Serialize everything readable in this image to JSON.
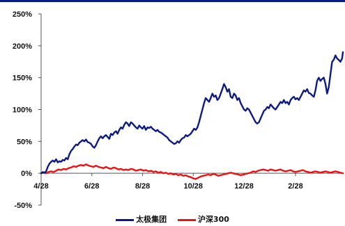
{
  "chart_data": {
    "type": "line",
    "title": "",
    "xlabel": "",
    "ylabel": "",
    "ylim": [
      -50,
      250
    ],
    "y_ticks": [
      -50,
      0,
      50,
      100,
      150,
      200,
      250
    ],
    "y_tick_labels": [
      "-50%",
      "0%",
      "50%",
      "100%",
      "150%",
      "200%",
      "250%"
    ],
    "x_tick_labels": [
      "4/28",
      "6/28",
      "8/28",
      "10/28",
      "12/28",
      "2/28"
    ],
    "x_domain": [
      0,
      363
    ],
    "x_ticks": [
      0,
      61,
      122,
      183,
      244,
      306
    ],
    "legend_position": "bottom",
    "series": [
      {
        "name": "太极集团",
        "color": "#0b1a84",
        "x": [
          0,
          2,
          4,
          6,
          8,
          10,
          12,
          14,
          16,
          18,
          20,
          22,
          24,
          26,
          28,
          30,
          32,
          34,
          36,
          38,
          40,
          42,
          44,
          46,
          48,
          50,
          52,
          54,
          56,
          58,
          60,
          62,
          64,
          66,
          68,
          70,
          72,
          74,
          76,
          78,
          80,
          82,
          84,
          86,
          88,
          90,
          92,
          94,
          96,
          98,
          100,
          102,
          104,
          106,
          108,
          110,
          112,
          114,
          116,
          118,
          120,
          122,
          124,
          126,
          128,
          130,
          132,
          134,
          136,
          138,
          140,
          142,
          144,
          146,
          148,
          150,
          152,
          154,
          156,
          158,
          160,
          162,
          164,
          166,
          168,
          170,
          172,
          174,
          176,
          178,
          180,
          182,
          184,
          186,
          188,
          190,
          192,
          194,
          196,
          198,
          200,
          202,
          204,
          206,
          208,
          210,
          212,
          214,
          216,
          218,
          220,
          222,
          224,
          226,
          228,
          230,
          232,
          234,
          236,
          238,
          240,
          242,
          244,
          246,
          248,
          250,
          252,
          254,
          256,
          258,
          260,
          262,
          264,
          266,
          268,
          270,
          272,
          274,
          276,
          278,
          280,
          282,
          284,
          286,
          288,
          290,
          292,
          294,
          296,
          298,
          300,
          302,
          304,
          306,
          308,
          310,
          312,
          314,
          316,
          318,
          320,
          322,
          324,
          326,
          328,
          330,
          332,
          334,
          336,
          338,
          340,
          342,
          344,
          346,
          348,
          350,
          352,
          354,
          356,
          358,
          360,
          362,
          363
        ],
        "y": [
          0,
          2,
          1,
          3,
          10,
          15,
          18,
          20,
          18,
          22,
          17,
          19,
          18,
          21,
          20,
          24,
          22,
          30,
          35,
          38,
          42,
          45,
          44,
          48,
          50,
          52,
          50,
          53,
          49,
          48,
          46,
          42,
          40,
          44,
          50,
          55,
          58,
          55,
          58,
          60,
          57,
          54,
          62,
          60,
          64,
          66,
          62,
          68,
          72,
          70,
          76,
          80,
          78,
          74,
          80,
          78,
          75,
          72,
          70,
          75,
          72,
          70,
          74,
          68,
          72,
          71,
          73,
          70,
          68,
          66,
          68,
          65,
          64,
          62,
          60,
          58,
          56,
          52,
          50,
          48,
          46,
          47,
          50,
          48,
          52,
          55,
          56,
          60,
          58,
          60,
          62,
          66,
          70,
          68,
          72,
          80,
          90,
          100,
          110,
          118,
          115,
          112,
          118,
          125,
          120,
          122,
          115,
          118,
          125,
          132,
          140,
          135,
          128,
          132,
          120,
          118,
          125,
          122,
          115,
          118,
          110,
          105,
          100,
          98,
          102,
          100,
          95,
          90,
          85,
          80,
          78,
          80,
          86,
          92,
          98,
          100,
          104,
          102,
          108,
          105,
          102,
          100,
          104,
          108,
          112,
          110,
          115,
          110,
          112,
          108,
          115,
          118,
          120,
          116,
          118,
          115,
          120,
          125,
          130,
          128,
          132,
          126,
          125,
          122,
          120,
          130,
          145,
          150,
          145,
          148,
          150,
          140,
          125,
          135,
          155,
          175,
          178,
          185,
          180,
          178,
          175,
          180,
          190
        ]
      },
      {
        "name": "沪深300",
        "color": "#ee1111",
        "x": [
          0,
          3,
          6,
          9,
          12,
          15,
          18,
          21,
          24,
          27,
          30,
          33,
          36,
          39,
          42,
          45,
          48,
          51,
          54,
          57,
          60,
          63,
          66,
          69,
          72,
          75,
          78,
          81,
          84,
          87,
          90,
          93,
          96,
          99,
          102,
          105,
          108,
          111,
          114,
          117,
          120,
          123,
          126,
          129,
          132,
          135,
          138,
          141,
          144,
          147,
          150,
          153,
          156,
          159,
          162,
          165,
          168,
          171,
          174,
          177,
          180,
          183,
          186,
          189,
          192,
          195,
          198,
          201,
          204,
          207,
          210,
          213,
          216,
          219,
          222,
          225,
          228,
          231,
          234,
          237,
          240,
          243,
          246,
          249,
          252,
          255,
          258,
          261,
          264,
          267,
          270,
          273,
          276,
          279,
          282,
          285,
          288,
          291,
          294,
          297,
          300,
          303,
          306,
          309,
          312,
          315,
          318,
          321,
          324,
          327,
          330,
          333,
          336,
          339,
          342,
          345,
          348,
          351,
          354,
          357,
          360,
          363
        ],
        "y": [
          0,
          1,
          0,
          2,
          3,
          2,
          4,
          6,
          5,
          7,
          6,
          8,
          9,
          11,
          10,
          12,
          13,
          12,
          14,
          12,
          11,
          10,
          12,
          10,
          9,
          8,
          10,
          8,
          7,
          9,
          8,
          6,
          7,
          5,
          6,
          5,
          7,
          6,
          4,
          5,
          6,
          4,
          5,
          3,
          4,
          2,
          3,
          1,
          2,
          0,
          1,
          -1,
          0,
          -2,
          -1,
          -3,
          -2,
          -4,
          -3,
          -5,
          -6,
          -8,
          -9,
          -7,
          -5,
          -4,
          -3,
          -2,
          -3,
          -1,
          -2,
          -4,
          -3,
          -2,
          -1,
          0,
          1,
          0,
          -1,
          -2,
          -3,
          -2,
          -1,
          0,
          1,
          3,
          2,
          4,
          5,
          6,
          5,
          4,
          6,
          5,
          4,
          5,
          6,
          4,
          3,
          4,
          5,
          3,
          2,
          3,
          4,
          5,
          3,
          2,
          1,
          2,
          3,
          2,
          1,
          2,
          3,
          2,
          1,
          2,
          3,
          2,
          1,
          0
        ]
      }
    ]
  }
}
